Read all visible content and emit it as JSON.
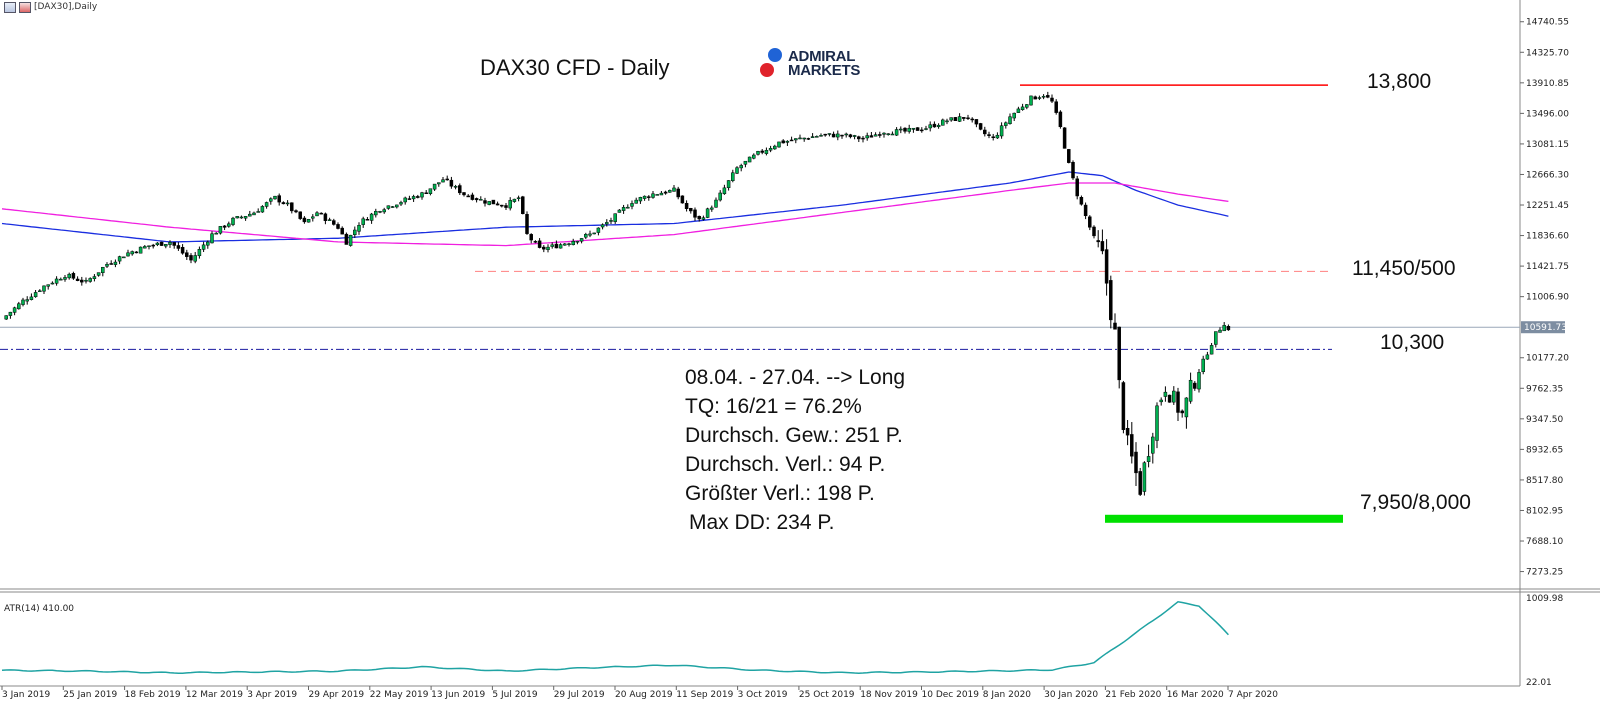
{
  "window": {
    "title": "[DAX30],Daily"
  },
  "branding": {
    "line1": "ADMIRAL",
    "line2": "MARKETS"
  },
  "chart_data": [
    {
      "type": "candlestick",
      "title": "DAX30 CFD - Daily",
      "x_tick_labels": [
        "3 Jan 2019",
        "25 Jan 2019",
        "18 Feb 2019",
        "12 Mar 2019",
        "3 Apr 2019",
        "29 Apr 2019",
        "22 May 2019",
        "13 Jun 2019",
        "5 Jul 2019",
        "29 Jul 2019",
        "20 Aug 2019",
        "11 Sep 2019",
        "3 Oct 2019",
        "25 Oct 2019",
        "18 Nov 2019",
        "10 Dec 2019",
        "8 Jan 2020",
        "30 Jan 2020",
        "21 Feb 2020",
        "16 Mar 2020",
        "7 Apr 2020"
      ],
      "y_tick_labels": [
        "14740.55",
        "14325.70",
        "13910.85",
        "13496.00",
        "13081.15",
        "12666.30",
        "12251.45",
        "11836.60",
        "11421.75",
        "11006.90",
        "10591.73",
        "10177.20",
        "9762.35",
        "9347.50",
        "8932.65",
        "8517.80",
        "8102.95",
        "7688.10",
        "7273.25"
      ],
      "ylim": [
        7050,
        14900
      ],
      "current_price": "10591.73",
      "series": [
        {
          "name": "price",
          "approx_close_path": [
            [
              0,
              10700
            ],
            [
              5,
              10950
            ],
            [
              10,
              11150
            ],
            [
              15,
              11300
            ],
            [
              20,
              11200
            ],
            [
              25,
              11450
            ],
            [
              30,
              11600
            ],
            [
              35,
              11700
            ],
            [
              40,
              11750
            ],
            [
              45,
              11500
            ],
            [
              50,
              11850
            ],
            [
              55,
              12050
            ],
            [
              60,
              12150
            ],
            [
              65,
              12350
            ],
            [
              68,
              12250
            ],
            [
              72,
              12000
            ],
            [
              75,
              12150
            ],
            [
              80,
              11950
            ],
            [
              82,
              11750
            ],
            [
              85,
              12000
            ],
            [
              90,
              12200
            ],
            [
              95,
              12300
            ],
            [
              100,
              12400
            ],
            [
              105,
              12600
            ],
            [
              110,
              12400
            ],
            [
              115,
              12300
            ],
            [
              120,
              12250
            ],
            [
              123,
              12350
            ],
            [
              125,
              11850
            ],
            [
              128,
              11650
            ],
            [
              132,
              11700
            ],
            [
              135,
              11750
            ],
            [
              140,
              11850
            ],
            [
              145,
              12050
            ],
            [
              150,
              12300
            ],
            [
              155,
              12400
            ],
            [
              160,
              12450
            ],
            [
              163,
              12200
            ],
            [
              166,
              12050
            ],
            [
              170,
              12300
            ],
            [
              175,
              12750
            ],
            [
              180,
              12950
            ],
            [
              185,
              13100
            ],
            [
              190,
              13150
            ],
            [
              195,
              13200
            ],
            [
              200,
              13200
            ],
            [
              205,
              13150
            ],
            [
              210,
              13250
            ],
            [
              215,
              13250
            ],
            [
              220,
              13300
            ],
            [
              225,
              13400
            ],
            [
              230,
              13450
            ],
            [
              233,
              13250
            ],
            [
              236,
              13150
            ],
            [
              240,
              13450
            ],
            [
              245,
              13700
            ],
            [
              248,
              13750
            ],
            [
              250,
              13650
            ],
            [
              252,
              13300
            ],
            [
              254,
              12800
            ],
            [
              256,
              12400
            ],
            [
              258,
              12100
            ],
            [
              260,
              11800
            ],
            [
              262,
              11550
            ],
            [
              263,
              11200
            ],
            [
              264,
              10800
            ],
            [
              265,
              10500
            ],
            [
              266,
              9800
            ],
            [
              267,
              9300
            ],
            [
              268,
              9000
            ],
            [
              270,
              8600
            ],
            [
              271,
              8400
            ],
            [
              272,
              8700
            ],
            [
              273,
              8950
            ],
            [
              275,
              9500
            ],
            [
              277,
              9800
            ],
            [
              279,
              9600
            ],
            [
              281,
              9400
            ],
            [
              283,
              9750
            ],
            [
              285,
              10000
            ],
            [
              287,
              10250
            ],
            [
              289,
              10500
            ],
            [
              291,
              10650
            ],
            [
              292,
              10550
            ]
          ],
          "x_count": 300
        },
        {
          "name": "MA blue",
          "approx_path": [
            [
              0,
              12000
            ],
            [
              40,
              11750
            ],
            [
              80,
              11800
            ],
            [
              120,
              11950
            ],
            [
              160,
              12000
            ],
            [
              200,
              12250
            ],
            [
              240,
              12550
            ],
            [
              254,
              12700
            ],
            [
              262,
              12650
            ],
            [
              270,
              12450
            ],
            [
              280,
              12250
            ],
            [
              292,
              12100
            ]
          ]
        },
        {
          "name": "MA magenta",
          "approx_path": [
            [
              0,
              12200
            ],
            [
              40,
              11950
            ],
            [
              80,
              11750
            ],
            [
              120,
              11700
            ],
            [
              160,
              11850
            ],
            [
              200,
              12150
            ],
            [
              240,
              12450
            ],
            [
              254,
              12550
            ],
            [
              265,
              12550
            ],
            [
              280,
              12400
            ],
            [
              292,
              12300
            ]
          ]
        }
      ],
      "levels": [
        {
          "label": "13,800",
          "value": 13880,
          "color": "#ff0000",
          "style": "solid"
        },
        {
          "label": "11,450/500",
          "value": 11350,
          "color": "#ff8080",
          "style": "dashed"
        },
        {
          "label": "10,300",
          "value": 10290,
          "color": "#1a1aa0",
          "style": "dashdot"
        },
        {
          "label": "7,950/8,000",
          "value": 7990,
          "color": "#00e000",
          "style": "band"
        }
      ],
      "annotations": [
        "08.04. - 27.04. --> Long",
        "TQ: 16/21 = 76.2%",
        "Durchsch. Gew.: 251 P.",
        "Durchsch. Verl.: 94 P.",
        "Größter Verl.: 198 P.",
        "Max DD: 234 P."
      ]
    },
    {
      "type": "line",
      "title": "ATR(14) 410.00",
      "y_tick_labels": [
        "1009.98",
        "22.01"
      ],
      "ylim": [
        22.01,
        1009.98
      ],
      "series": [
        {
          "name": "ATR(14)",
          "approx_path": [
            [
              0,
              160
            ],
            [
              20,
              150
            ],
            [
              40,
              130
            ],
            [
              60,
              140
            ],
            [
              80,
              150
            ],
            [
              100,
              200
            ],
            [
              120,
              150
            ],
            [
              140,
              190
            ],
            [
              160,
              220
            ],
            [
              180,
              160
            ],
            [
              200,
              130
            ],
            [
              220,
              140
            ],
            [
              240,
              155
            ],
            [
              250,
              165
            ],
            [
              260,
              250
            ],
            [
              270,
              600
            ],
            [
              280,
              960
            ],
            [
              285,
              920
            ],
            [
              292,
              580
            ]
          ]
        }
      ]
    }
  ]
}
